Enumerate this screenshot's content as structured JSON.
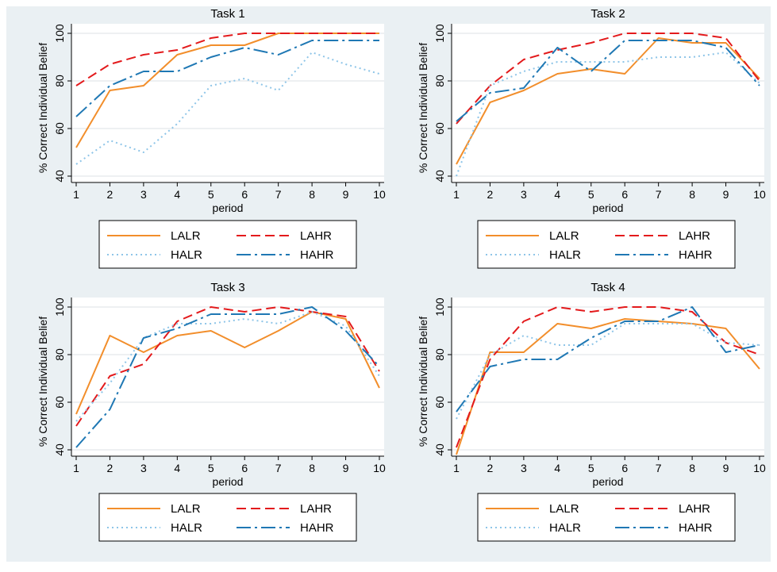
{
  "colors": {
    "background": "#eaf0f3",
    "plot_background": "#ffffff",
    "grid": "#e3e8ea",
    "series": {
      "LALR": "#f28e2b",
      "LAHR": "#e31a1c",
      "HALR": "#8ec5e8",
      "HAHR": "#1f78b4"
    }
  },
  "chart_data": [
    {
      "type": "line",
      "title": "Task 1",
      "xlabel": "period",
      "ylabel": "% Correct Individual Belief",
      "xlim": [
        1,
        10
      ],
      "ylim": [
        40,
        100
      ],
      "xticks": [
        "1",
        "2",
        "3",
        "4",
        "5",
        "6",
        "7",
        "8",
        "9",
        "10"
      ],
      "yticks": [
        "40",
        "60",
        "80",
        "100"
      ],
      "grid": true,
      "legend_position": "bottom",
      "x": [
        1,
        2,
        3,
        4,
        5,
        6,
        7,
        8,
        9,
        10
      ],
      "series": [
        {
          "name": "LALR",
          "style": "solid",
          "values": [
            52,
            76,
            78,
            91,
            95,
            95,
            100,
            100,
            100,
            100
          ]
        },
        {
          "name": "LAHR",
          "style": "dash",
          "values": [
            78,
            87,
            91,
            93,
            98,
            100,
            100,
            100,
            100,
            100
          ]
        },
        {
          "name": "HALR",
          "style": "dot",
          "values": [
            45,
            55,
            50,
            62,
            78,
            81,
            76,
            92,
            87,
            83
          ]
        },
        {
          "name": "HAHR",
          "style": "longdash-dot",
          "values": [
            65,
            78,
            84,
            84,
            90,
            94,
            91,
            97,
            97,
            97
          ]
        }
      ]
    },
    {
      "type": "line",
      "title": "Task 2",
      "xlabel": "period",
      "ylabel": "% Correct Individual Belief",
      "xlim": [
        1,
        10
      ],
      "ylim": [
        40,
        100
      ],
      "xticks": [
        "1",
        "2",
        "3",
        "4",
        "5",
        "6",
        "7",
        "8",
        "9",
        "10"
      ],
      "yticks": [
        "40",
        "60",
        "80",
        "100"
      ],
      "grid": true,
      "legend_position": "bottom",
      "x": [
        1,
        2,
        3,
        4,
        5,
        6,
        7,
        8,
        9,
        10
      ],
      "series": [
        {
          "name": "LALR",
          "style": "solid",
          "values": [
            45,
            71,
            76,
            83,
            85,
            83,
            98,
            96,
            96,
            81
          ]
        },
        {
          "name": "LAHR",
          "style": "dash",
          "values": [
            62,
            78,
            89,
            93,
            96,
            100,
            100,
            100,
            98,
            80
          ]
        },
        {
          "name": "HALR",
          "style": "dot",
          "values": [
            40,
            78,
            84,
            88,
            88,
            88,
            90,
            90,
            92,
            79
          ]
        },
        {
          "name": "HAHR",
          "style": "longdash-dot",
          "values": [
            63,
            75,
            77,
            94,
            84,
            97,
            97,
            97,
            94,
            78
          ]
        }
      ]
    },
    {
      "type": "line",
      "title": "Task 3",
      "xlabel": "period",
      "ylabel": "% Correct Individual Belief",
      "xlim": [
        1,
        10
      ],
      "ylim": [
        40,
        100
      ],
      "xticks": [
        "1",
        "2",
        "3",
        "4",
        "5",
        "6",
        "7",
        "8",
        "9",
        "10"
      ],
      "yticks": [
        "40",
        "60",
        "80",
        "100"
      ],
      "grid": true,
      "legend_position": "bottom",
      "x": [
        1,
        2,
        3,
        4,
        5,
        6,
        7,
        8,
        9,
        10
      ],
      "series": [
        {
          "name": "LALR",
          "style": "solid",
          "values": [
            55,
            88,
            81,
            88,
            90,
            83,
            90,
            98,
            95,
            66
          ]
        },
        {
          "name": "LAHR",
          "style": "dash",
          "values": [
            50,
            71,
            76,
            94,
            100,
            98,
            100,
            98,
            96,
            73
          ]
        },
        {
          "name": "HALR",
          "style": "dot",
          "values": [
            52,
            68,
            87,
            93,
            93,
            95,
            93,
            98,
            92,
            71
          ]
        },
        {
          "name": "HAHR",
          "style": "longdash-dot",
          "values": [
            41,
            57,
            87,
            91,
            97,
            97,
            97,
            100,
            90,
            75
          ]
        }
      ]
    },
    {
      "type": "line",
      "title": "Task 4",
      "xlabel": "period",
      "ylabel": "% Correct Individual Belief",
      "xlim": [
        1,
        10
      ],
      "ylim": [
        40,
        100
      ],
      "xticks": [
        "1",
        "2",
        "3",
        "4",
        "5",
        "6",
        "7",
        "8",
        "9",
        "10"
      ],
      "yticks": [
        "40",
        "60",
        "80",
        "100"
      ],
      "grid": true,
      "legend_position": "bottom",
      "x": [
        1,
        2,
        3,
        4,
        5,
        6,
        7,
        8,
        9,
        10
      ],
      "series": [
        {
          "name": "LALR",
          "style": "solid",
          "values": [
            38,
            81,
            81,
            93,
            91,
            95,
            94,
            93,
            91,
            74
          ]
        },
        {
          "name": "LAHR",
          "style": "dash",
          "values": [
            41,
            78,
            94,
            100,
            98,
            100,
            100,
            98,
            85,
            80
          ]
        },
        {
          "name": "HALR",
          "style": "dot",
          "values": [
            53,
            80,
            88,
            84,
            84,
            93,
            93,
            93,
            85,
            84
          ]
        },
        {
          "name": "HAHR",
          "style": "longdash-dot",
          "values": [
            56,
            75,
            78,
            78,
            87,
            94,
            94,
            100,
            81,
            84
          ]
        }
      ]
    }
  ]
}
